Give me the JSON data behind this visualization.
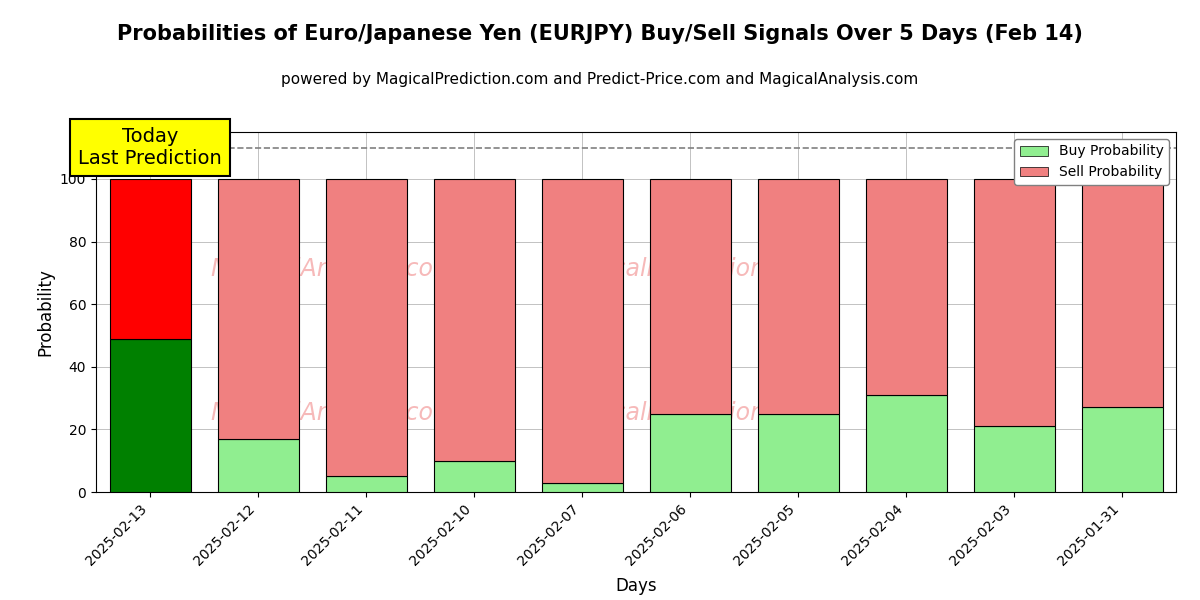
{
  "title": "Probabilities of Euro/Japanese Yen (EURJPY) Buy/Sell Signals Over 5 Days (Feb 14)",
  "subtitle": "powered by MagicalPrediction.com and Predict-Price.com and MagicalAnalysis.com",
  "xlabel": "Days",
  "ylabel": "Probability",
  "categories": [
    "2025-02-13",
    "2025-02-12",
    "2025-02-11",
    "2025-02-10",
    "2025-02-07",
    "2025-02-06",
    "2025-02-05",
    "2025-02-04",
    "2025-02-03",
    "2025-01-31"
  ],
  "buy_values": [
    49,
    17,
    5,
    10,
    3,
    25,
    25,
    31,
    21,
    27
  ],
  "sell_values": [
    51,
    83,
    95,
    90,
    97,
    75,
    75,
    69,
    79,
    73
  ],
  "today_buy_color": "#008000",
  "today_sell_color": "#FF0000",
  "buy_color": "#90EE90",
  "sell_color": "#F08080",
  "today_annotation": "Today\nLast Prediction",
  "annotation_bg_color": "#FFFF00",
  "dashed_line_y": 110,
  "ylim": [
    0,
    115
  ],
  "yticks": [
    0,
    20,
    40,
    60,
    80,
    100
  ],
  "watermark_color": "#F08080",
  "watermark_alpha": 0.55,
  "legend_buy_label": "Buy Probability",
  "legend_sell_label": "Sell Probability",
  "background_color": "#ffffff",
  "grid_color": "#aaaaaa",
  "bar_edge_color": "#000000",
  "bar_edge_width": 0.8,
  "title_fontsize": 15,
  "subtitle_fontsize": 11,
  "axis_label_fontsize": 12,
  "tick_fontsize": 10,
  "legend_fontsize": 10,
  "annotation_fontsize": 14,
  "bar_width": 0.75
}
